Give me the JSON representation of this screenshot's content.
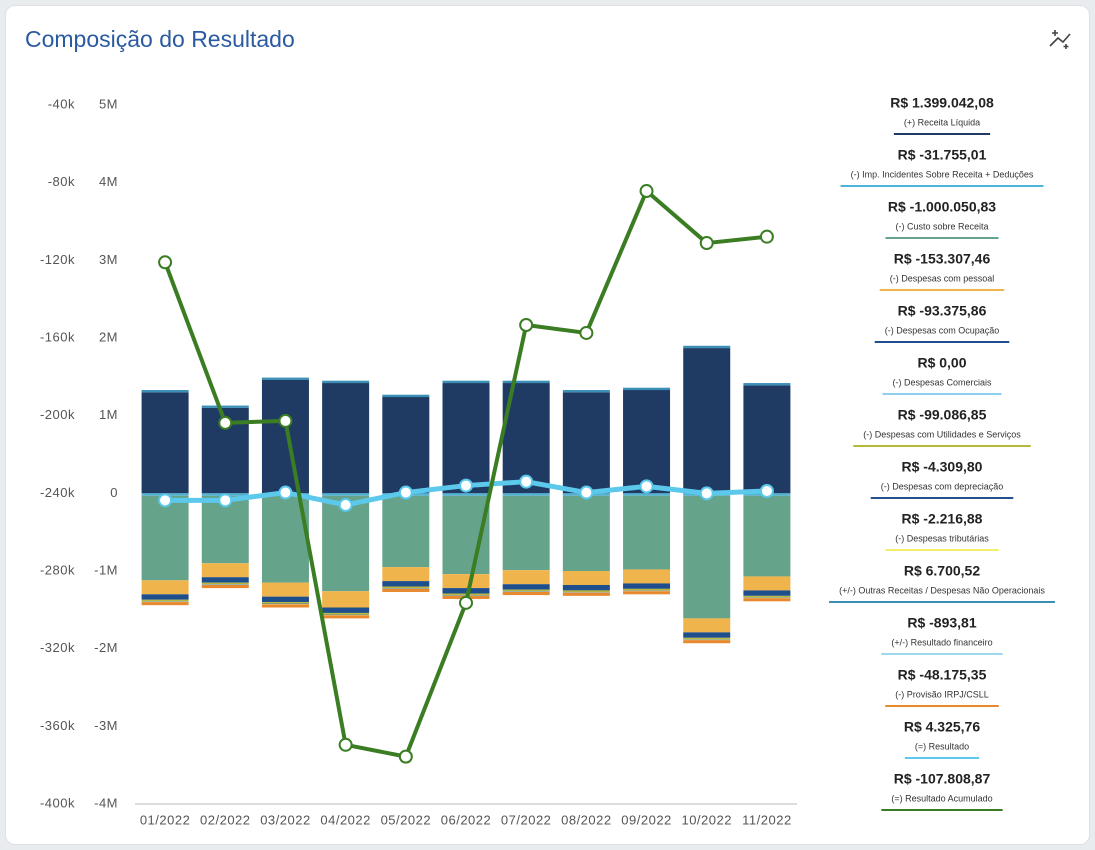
{
  "chart_data": {
    "type": "bar",
    "title": "Composição do Resultado",
    "categories": [
      "01/2022",
      "02/2022",
      "03/2022",
      "04/2022",
      "05/2022",
      "06/2022",
      "07/2022",
      "08/2022",
      "09/2022",
      "10/2022",
      "11/2022"
    ],
    "ylim": [
      -400000,
      -40000
    ],
    "yticks": [
      {
        "value": -400000,
        "label": "-400k"
      },
      {
        "value": -360000,
        "label": "-360k"
      },
      {
        "value": -320000,
        "label": "-320k"
      },
      {
        "value": -280000,
        "label": "-280k"
      },
      {
        "value": -240000,
        "label": "-240k"
      },
      {
        "value": -200000,
        "label": "-200k"
      },
      {
        "value": -160000,
        "label": "-160k"
      },
      {
        "value": -120000,
        "label": "-120k"
      },
      {
        "value": -80000,
        "label": "-80k"
      },
      {
        "value": -40000,
        "label": "-40k"
      }
    ],
    "y2lim": [
      -4000000,
      5000000
    ],
    "y2ticks": [
      {
        "value": -4000000,
        "label": "-4M"
      },
      {
        "value": -3000000,
        "label": "-3M"
      },
      {
        "value": -2000000,
        "label": "-2M"
      },
      {
        "value": -1000000,
        "label": "-1M"
      },
      0,
      {
        "value": 1000000,
        "label": "1M"
      },
      {
        "value": 2000000,
        "label": "2M"
      },
      {
        "value": 3000000,
        "label": "3M"
      },
      {
        "value": 4000000,
        "label": "4M"
      },
      {
        "value": 5000000,
        "label": "5M"
      }
    ],
    "series": [
      {
        "name": "(+) Receita Líquida",
        "total_label": "R$ 1.399.042,08",
        "type": "bar",
        "axis": "y2",
        "color": "#1f3b63",
        "values": [
          1300000,
          1100000,
          1460000,
          1420000,
          1240000,
          1420000,
          1420000,
          1300000,
          1330000,
          1870000,
          1390000
        ]
      },
      {
        "name": "(-) Imp. Incidentes Sobre Receita + Deduções",
        "total_label": "R$ -31.755,01",
        "type": "bar",
        "axis": "y2",
        "color": "#4fb3d9",
        "values": [
          -30000,
          -30000,
          -30000,
          -30000,
          -30000,
          -30000,
          -30000,
          -30000,
          -30000,
          -30000,
          -30000
        ]
      },
      {
        "name": "(-) Custo sobre Receita",
        "total_label": "R$ -1.000.050,83",
        "type": "bar",
        "axis": "y2",
        "color": "#65a48a",
        "values": [
          -1090000,
          -870000,
          -1120000,
          -1230000,
          -920000,
          -1010000,
          -960000,
          -970000,
          -950000,
          -1580000,
          -1040000
        ]
      },
      {
        "name": "(-) Despesas com pessoal",
        "total_label": "R$ -153.307,46",
        "type": "bar",
        "axis": "y2",
        "color": "#f0b44c",
        "values": [
          -180000,
          -180000,
          -180000,
          -210000,
          -180000,
          -180000,
          -180000,
          -180000,
          -180000,
          -180000,
          -180000
        ]
      },
      {
        "name": "(-) Despesas com Ocupação",
        "total_label": "R$ -93.375,86",
        "type": "bar",
        "axis": "y2",
        "color": "#1f4e8c",
        "values": [
          -70000,
          -70000,
          -70000,
          -70000,
          -70000,
          -70000,
          -70000,
          -70000,
          -70000,
          -70000,
          -70000
        ]
      },
      {
        "name": "(-) Despesas Comerciais",
        "total_label": "R$ 0,00",
        "type": "bar",
        "axis": "y2",
        "color": "#8fd0ee",
        "values": [
          0,
          0,
          0,
          0,
          0,
          0,
          0,
          0,
          0,
          0,
          0
        ]
      },
      {
        "name": "(-) Despesas com Utilidades e Serviços",
        "total_label": "R$ -99.086,85",
        "type": "bar",
        "axis": "y2",
        "color": "#b5b83a",
        "values": [
          -20000,
          -20000,
          -20000,
          -20000,
          -20000,
          -20000,
          -20000,
          -20000,
          -20000,
          -20000,
          -20000
        ]
      },
      {
        "name": "(-) Despesas com depreciação",
        "total_label": "R$ -4.309,80",
        "type": "bar",
        "axis": "y2",
        "color": "#24508e",
        "values": [
          -5000,
          -5000,
          -5000,
          -5000,
          -5000,
          -5000,
          -5000,
          -5000,
          -5000,
          -5000,
          -5000
        ]
      },
      {
        "name": "(-) Despesas tributárias",
        "total_label": "R$ -2.216,88",
        "type": "bar",
        "axis": "y2",
        "color": "#f5ee6a",
        "values": [
          -3000,
          -3000,
          -3000,
          -3000,
          -3000,
          -3000,
          -3000,
          -3000,
          -3000,
          -3000,
          -3000
        ]
      },
      {
        "name": "(+/-) Outras Receitas / Despesas Não Operacionais",
        "total_label": "R$ 6.700,52",
        "type": "bar",
        "axis": "y2",
        "color": "#3a8fb7",
        "values": [
          30000,
          30000,
          30000,
          30000,
          30000,
          30000,
          30000,
          30000,
          30000,
          30000,
          30000
        ]
      },
      {
        "name": "(+/-) Resultado financeiro",
        "total_label": "R$ -893,81",
        "type": "bar",
        "axis": "y2",
        "color": "#9fd8ee",
        "values": [
          -2000,
          -2000,
          -2000,
          -2000,
          -2000,
          -2000,
          -2000,
          -2000,
          -2000,
          -2000,
          -2000
        ]
      },
      {
        "name": "(-) Provisão IRPJ/CSLL",
        "total_label": "R$ -48.175,35",
        "type": "bar",
        "axis": "y2",
        "color": "#e8892e",
        "values": [
          -40000,
          -40000,
          -40000,
          -40000,
          -40000,
          -40000,
          -40000,
          -40000,
          -40000,
          -40000,
          -40000
        ]
      },
      {
        "name": "(=) Resultado",
        "total_label": "R$ 4.325,76",
        "type": "line",
        "axis": "y2",
        "color": "#5bc8ec",
        "values": [
          -90000,
          -90000,
          10000,
          -150000,
          10000,
          100000,
          150000,
          10000,
          90000,
          0,
          30000
        ]
      },
      {
        "name": "(=) Resultado Acumulado",
        "total_label": "R$ -107.808,87",
        "type": "line",
        "axis": "y",
        "color": "#3a7d23",
        "values": [
          -121000,
          -203700,
          -202700,
          -369500,
          -375600,
          -296400,
          -153300,
          -157400,
          -84300,
          -111100,
          -107809
        ]
      }
    ]
  }
}
